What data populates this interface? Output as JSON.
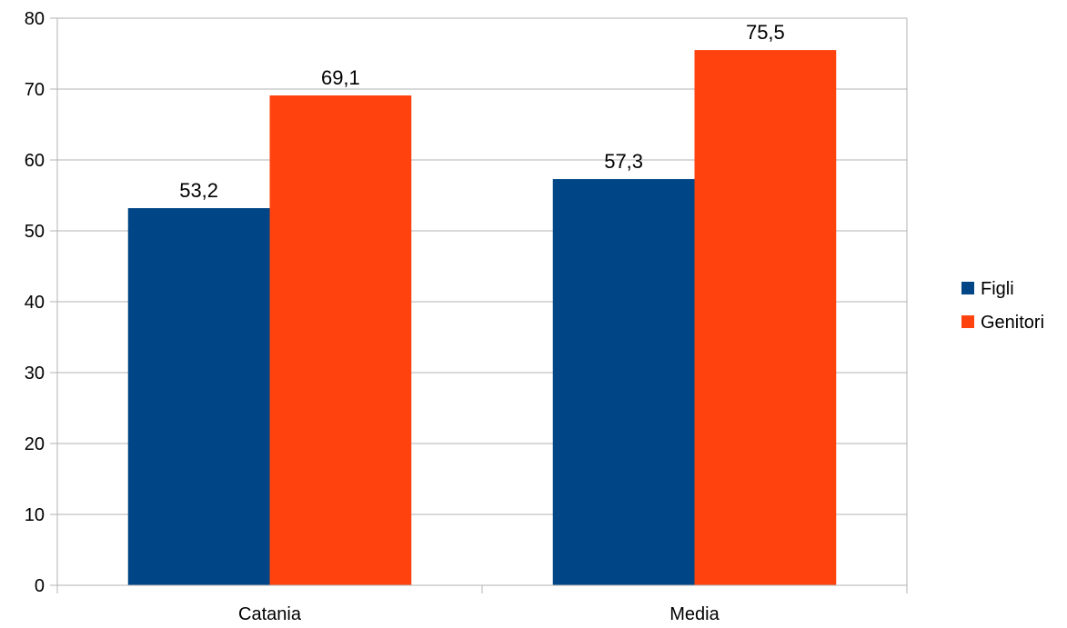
{
  "chart_data": {
    "type": "bar",
    "categories": [
      "Catania",
      "Media"
    ],
    "series": [
      {
        "name": "Figli",
        "values": [
          53.2,
          57.3
        ],
        "color": "#004586"
      },
      {
        "name": "Genitori",
        "values": [
          69.1,
          75.5
        ],
        "color": "#ff420e"
      }
    ],
    "data_labels": [
      [
        "53,2",
        "57,3"
      ],
      [
        "69,1",
        "75,5"
      ]
    ],
    "ylim": [
      0,
      80
    ],
    "yticks": [
      "0",
      "10",
      "20",
      "30",
      "40",
      "50",
      "60",
      "70",
      "80"
    ],
    "grid": true,
    "grid_color": "#b3b3b3",
    "legend_position": "right",
    "title": "",
    "xlabel": "",
    "ylabel": ""
  }
}
